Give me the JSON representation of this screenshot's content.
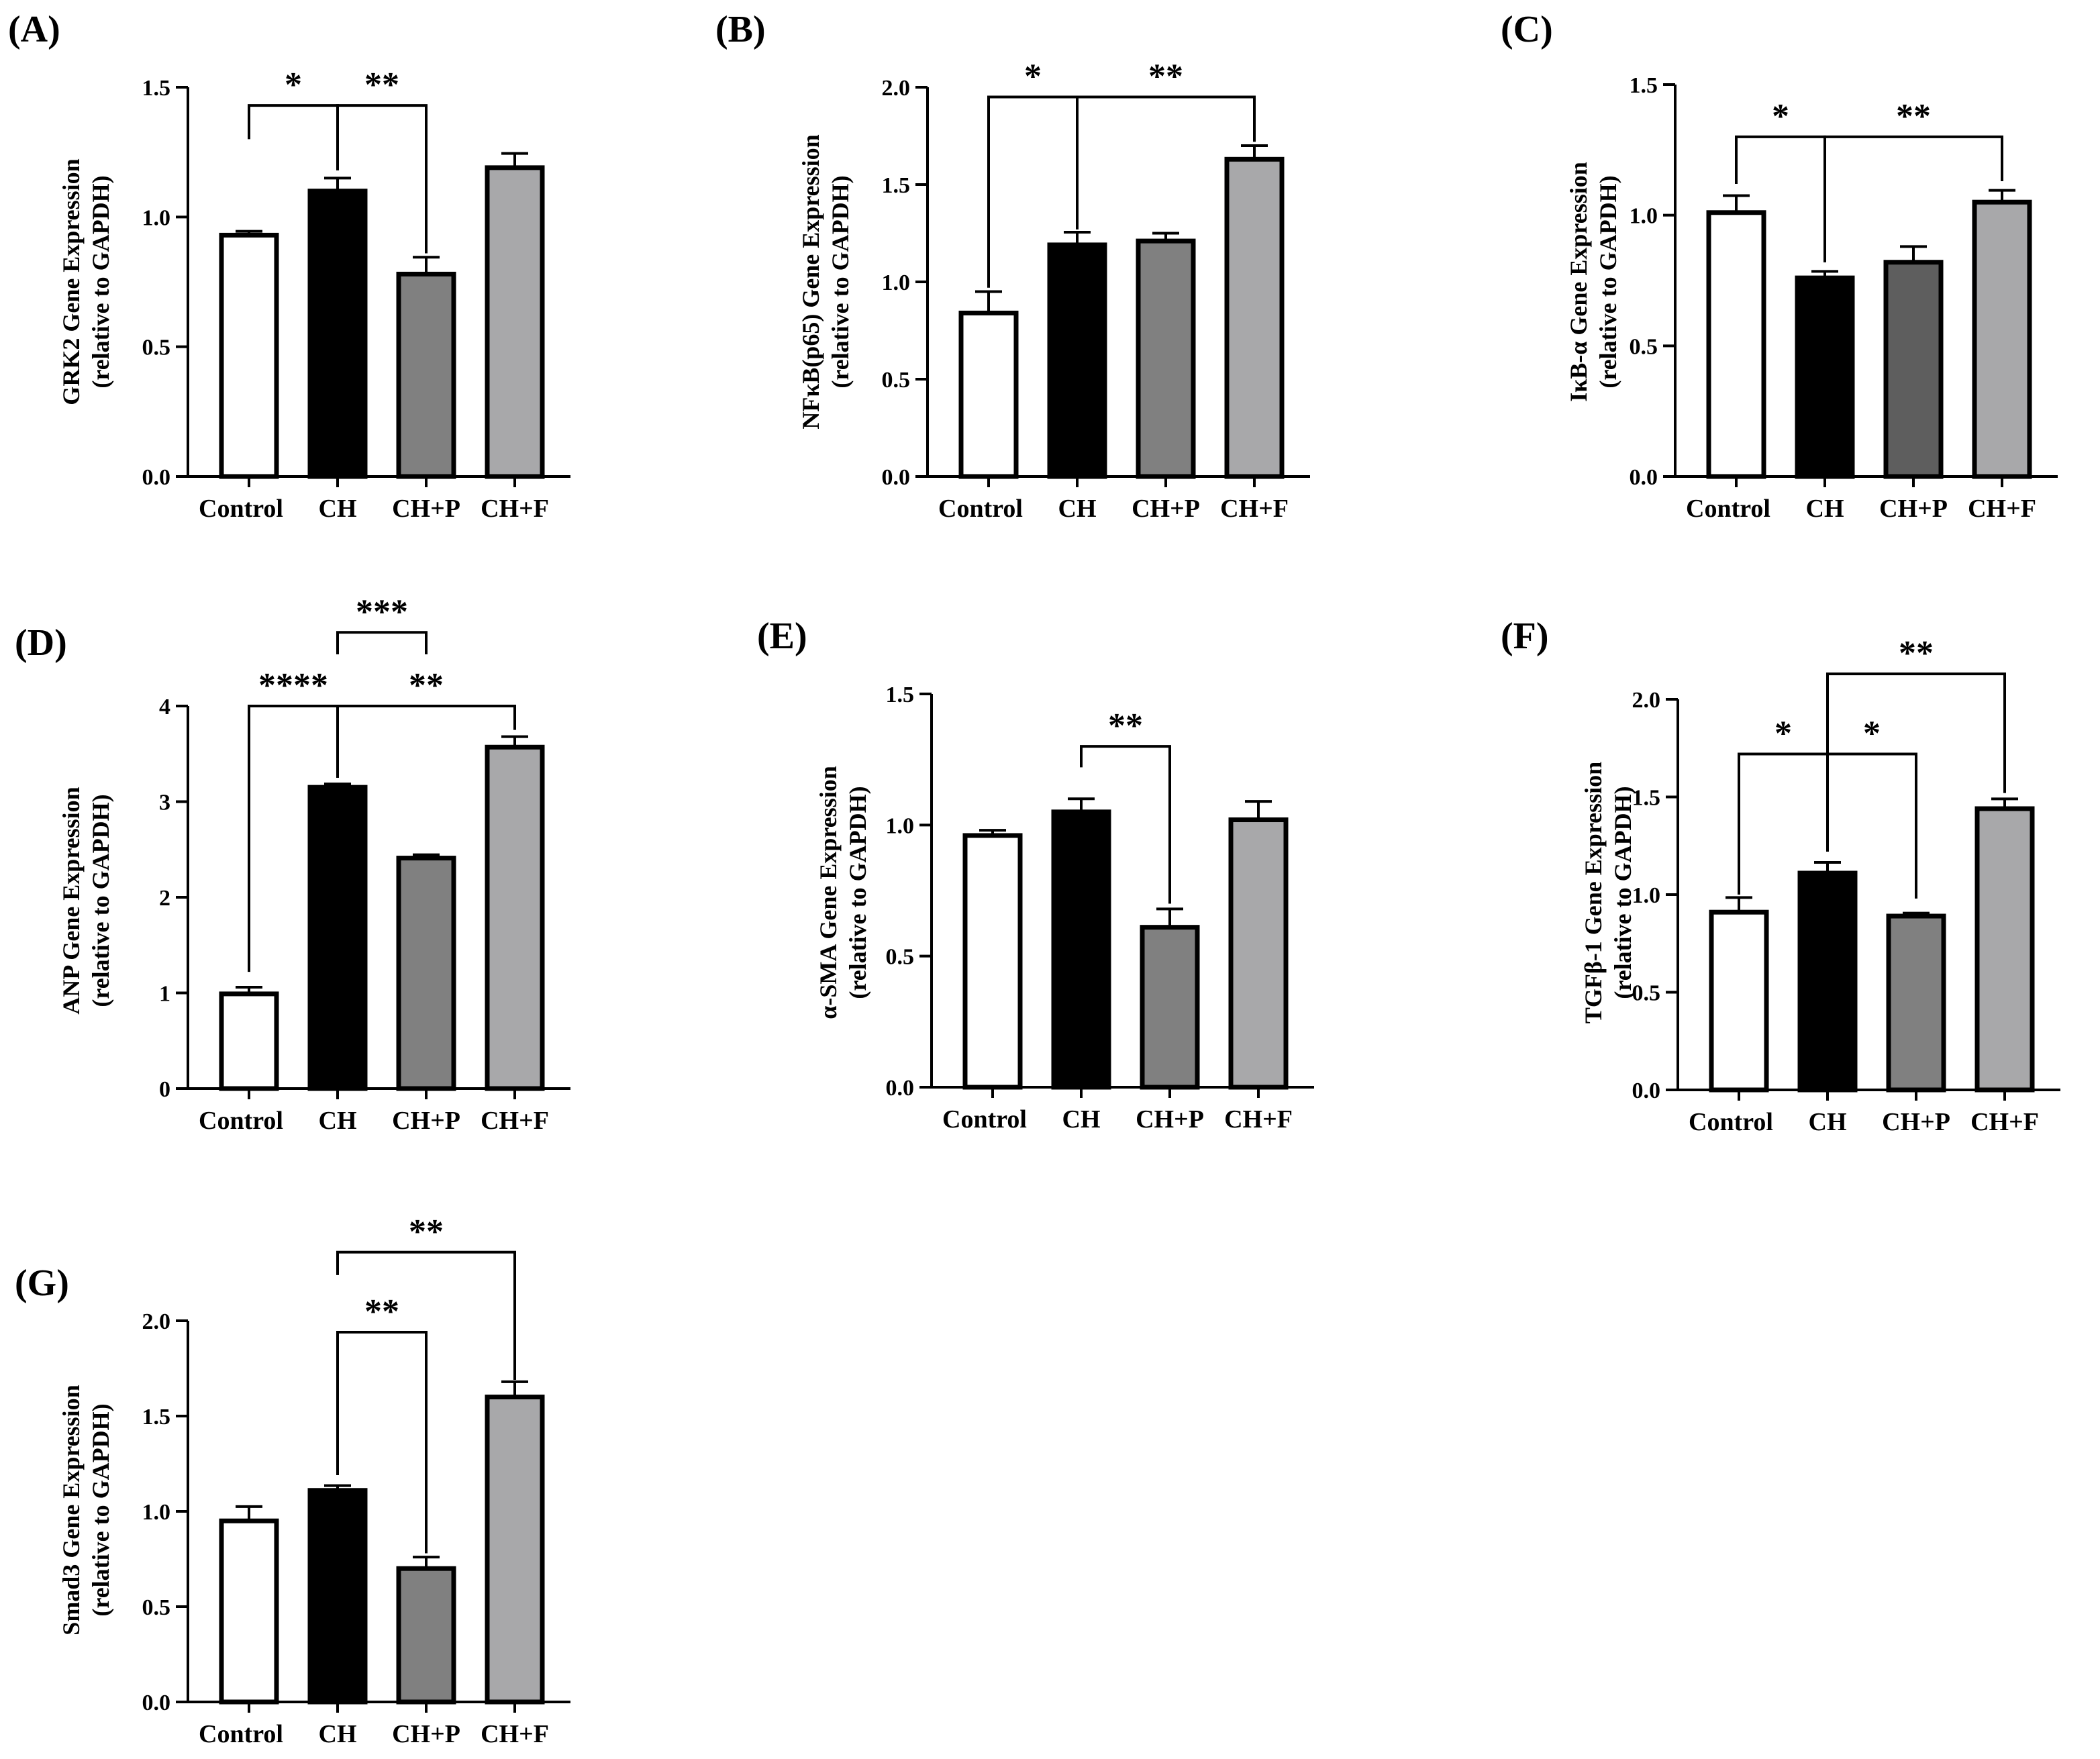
{
  "chart_data": [
    {
      "panel_label": "(A)",
      "type": "bar",
      "categories": [
        "Control",
        "CH",
        "CH+P",
        "CH+F"
      ],
      "values": [
        0.93,
        1.1,
        0.78,
        1.19
      ],
      "errors": [
        0.015,
        0.05,
        0.065,
        0.055
      ],
      "ylabel": [
        "GRK2 Gene Expression",
        "(relative to GAPDH)"
      ],
      "ylim": [
        0,
        1.5
      ],
      "yticks": [
        "0.0",
        "0.5",
        "1.0",
        "1.5"
      ],
      "bar_colors": [
        "#ffffff",
        "#000000",
        "#808080",
        "#a8a8aa"
      ],
      "significance": [
        {
          "from": 0,
          "to": 1,
          "label": "*",
          "y": 1.43,
          "left_end": 1.3,
          "right_end": 1.18
        },
        {
          "from": 1,
          "to": 2,
          "label": "**",
          "y": 1.43,
          "left_end": 1.18,
          "right_end": 0.86
        }
      ]
    },
    {
      "panel_label": "(B)",
      "type": "bar",
      "categories": [
        "Control",
        "CH",
        "CH+P",
        "CH+F"
      ],
      "values": [
        0.84,
        1.19,
        1.21,
        1.63
      ],
      "errors": [
        0.11,
        0.065,
        0.04,
        0.07
      ],
      "ylabel": [
        "NFκB(p65) Gene Expression",
        "(relative to GAPDH)"
      ],
      "ylim": [
        0,
        2.0
      ],
      "yticks": [
        "0.0",
        "0.5",
        "1.0",
        "1.5",
        "2.0"
      ],
      "bar_colors": [
        "#ffffff",
        "#000000",
        "#808080",
        "#a8a8aa"
      ],
      "significance": [
        {
          "from": 0,
          "to": 1,
          "label": "*",
          "y": 1.95,
          "left_end": 0.97,
          "right_end": 1.27
        },
        {
          "from": 1,
          "to": 3,
          "label": "**",
          "y": 1.95,
          "left_end": 1.27,
          "right_end": 1.72
        }
      ]
    },
    {
      "panel_label": "(C)",
      "type": "bar",
      "categories": [
        "Control",
        "CH",
        "CH+P",
        "CH+F"
      ],
      "values": [
        1.01,
        0.76,
        0.82,
        1.05
      ],
      "errors": [
        0.065,
        0.025,
        0.06,
        0.045
      ],
      "ylabel": [
        "IκB-α Gene Expression",
        "(relative to GAPDH)"
      ],
      "ylim": [
        0,
        1.5
      ],
      "yticks": [
        "0.0",
        "0.5",
        "1.0",
        "1.5"
      ],
      "bar_colors": [
        "#ffffff",
        "#000000",
        "#5e5e5e",
        "#a8a8aa"
      ],
      "significance": [
        {
          "from": 0,
          "to": 1,
          "label": "*",
          "y": 1.3,
          "left_end": 1.12,
          "right_end": 0.82
        },
        {
          "from": 1,
          "to": 3,
          "label": "**",
          "y": 1.3,
          "left_end": 0.82,
          "right_end": 1.13
        }
      ]
    },
    {
      "panel_label": "(D)",
      "type": "bar",
      "categories": [
        "Control",
        "CH",
        "CH+P",
        "CH+F"
      ],
      "values": [
        0.99,
        3.15,
        2.41,
        3.57
      ],
      "errors": [
        0.07,
        0.035,
        0.035,
        0.11
      ],
      "ylabel": [
        "ANP Gene Expression",
        "(relative to GAPDH)"
      ],
      "ylim": [
        0,
        4
      ],
      "yticks": [
        "0",
        "1",
        "2",
        "3",
        "4"
      ],
      "bar_colors": [
        "#ffffff",
        "#000000",
        "#808080",
        "#a8a8aa"
      ],
      "significance": [
        {
          "from": 1,
          "to": 2,
          "label": "***",
          "y": 4.77,
          "left_end": 4.54,
          "right_end": 4.54
        },
        {
          "from": 0,
          "to": 1,
          "label": "****",
          "y": 4.0,
          "left_end": 1.22,
          "right_end": 3.25
        },
        {
          "from": 1,
          "to": 3,
          "label": "**",
          "y": 4.0,
          "left_end": 3.25,
          "right_end": 3.75
        }
      ]
    },
    {
      "panel_label": "(E)",
      "type": "bar",
      "categories": [
        "Control",
        "CH",
        "CH+P",
        "CH+F"
      ],
      "values": [
        0.96,
        1.05,
        0.61,
        1.02
      ],
      "errors": [
        0.02,
        0.05,
        0.07,
        0.07
      ],
      "ylabel": [
        "α-SMA Gene Expression",
        "(relative to GAPDH)"
      ],
      "ylim": [
        0,
        1.5
      ],
      "yticks": [
        "0.0",
        "0.5",
        "1.0",
        "1.5"
      ],
      "bar_colors": [
        "#ffffff",
        "#000000",
        "#808080",
        "#a8a8aa"
      ],
      "significance": [
        {
          "from": 1,
          "to": 2,
          "label": "**",
          "y": 1.3,
          "left_end": 1.22,
          "right_end": 0.7
        }
      ]
    },
    {
      "panel_label": "(F)",
      "type": "bar",
      "categories": [
        "Control",
        "CH",
        "CH+P",
        "CH+F"
      ],
      "values": [
        0.91,
        1.11,
        0.89,
        1.44
      ],
      "errors": [
        0.075,
        0.055,
        0.015,
        0.05
      ],
      "ylabel": [
        "TGFβ-1 Gene Expression",
        "(relative to GAPDH)"
      ],
      "ylim": [
        0,
        2.0
      ],
      "yticks": [
        "0.0",
        "0.5",
        "1.0",
        "1.5",
        "2.0"
      ],
      "bar_colors": [
        "#ffffff",
        "#000000",
        "#808080",
        "#a8a8aa"
      ],
      "significance": [
        {
          "from": 0,
          "to": 1,
          "label": "*",
          "y": 1.72,
          "left_end": 1.0,
          "right_end": 1.22
        },
        {
          "from": 1,
          "to": 2,
          "label": "*",
          "y": 1.72,
          "left_end": 1.22,
          "right_end": 0.98
        },
        {
          "from": 1,
          "to": 3,
          "label": "**",
          "y": 2.13,
          "left_end": 1.72,
          "right_end": 1.52
        }
      ]
    },
    {
      "panel_label": "(G)",
      "type": "bar",
      "categories": [
        "Control",
        "CH",
        "CH+P",
        "CH+F"
      ],
      "values": [
        0.95,
        1.11,
        0.7,
        1.6
      ],
      "errors": [
        0.075,
        0.025,
        0.06,
        0.08
      ],
      "ylabel": [
        "Smad3 Gene Expression",
        "(relative to GAPDH)"
      ],
      "ylim": [
        0,
        2.0
      ],
      "yticks": [
        "0.0",
        "0.5",
        "1.0",
        "1.5",
        "2.0"
      ],
      "bar_colors": [
        "#ffffff",
        "#000000",
        "#808080",
        "#a8a8aa"
      ],
      "significance": [
        {
          "from": 1,
          "to": 2,
          "label": "**",
          "y": 1.94,
          "left_end": 1.19,
          "right_end": 0.78
        },
        {
          "from": 1,
          "to": 3,
          "label": "**",
          "y": 2.36,
          "left_end": 2.24,
          "right_end": 1.69
        }
      ]
    }
  ]
}
